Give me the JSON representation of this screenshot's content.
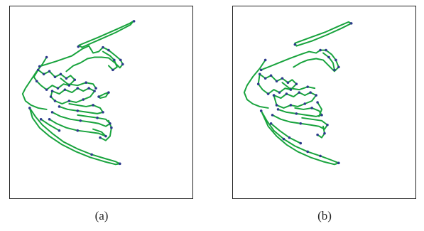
{
  "panels": [
    {
      "caption": "(a)"
    },
    {
      "caption": "(b)"
    }
  ],
  "colors": {
    "edge": "#18a33d",
    "point": "#2d3a8c",
    "border": "#222222"
  }
}
